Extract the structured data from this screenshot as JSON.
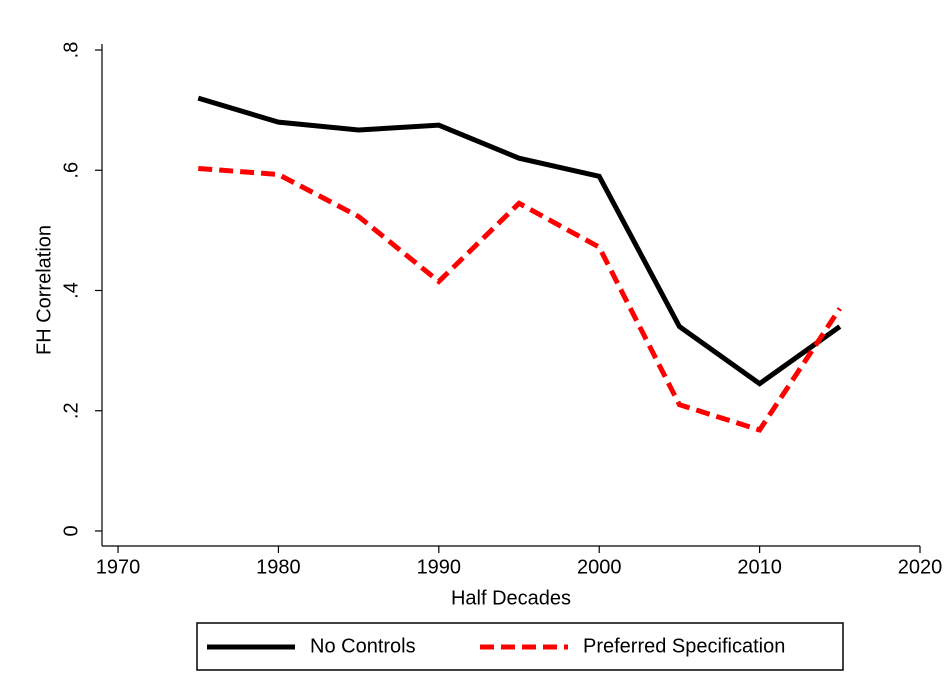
{
  "chart_data": {
    "type": "line",
    "x_label": "Half Decades",
    "y_label": "FH Correlation",
    "x": [
      1975,
      1980,
      1985,
      1990,
      1995,
      2000,
      2005,
      2010,
      2015
    ],
    "series": [
      {
        "name": "No Controls",
        "color": "#000000",
        "dash": "solid",
        "values": [
          0.72,
          0.68,
          0.667,
          0.675,
          0.62,
          0.59,
          0.34,
          0.245,
          0.34
        ]
      },
      {
        "name": "Preferred Specification",
        "color": "#ff0000",
        "dash": "dashed",
        "values": [
          0.603,
          0.593,
          0.523,
          0.415,
          0.545,
          0.472,
          0.21,
          0.168,
          0.37
        ]
      }
    ],
    "xlim": [
      1969,
      2020
    ],
    "xticks": [
      1970,
      1980,
      1990,
      2000,
      2010,
      2020
    ],
    "ylim": [
      -0.025,
      0.81
    ],
    "yticks": [
      0,
      {
        "value": 0.2,
        "label": ".2"
      },
      {
        "value": 0.4,
        "label": ".4"
      },
      {
        "value": 0.6,
        "label": ".6"
      },
      {
        "value": 0.8,
        "label": ".8"
      }
    ],
    "grid": false,
    "legend": "bottom"
  }
}
